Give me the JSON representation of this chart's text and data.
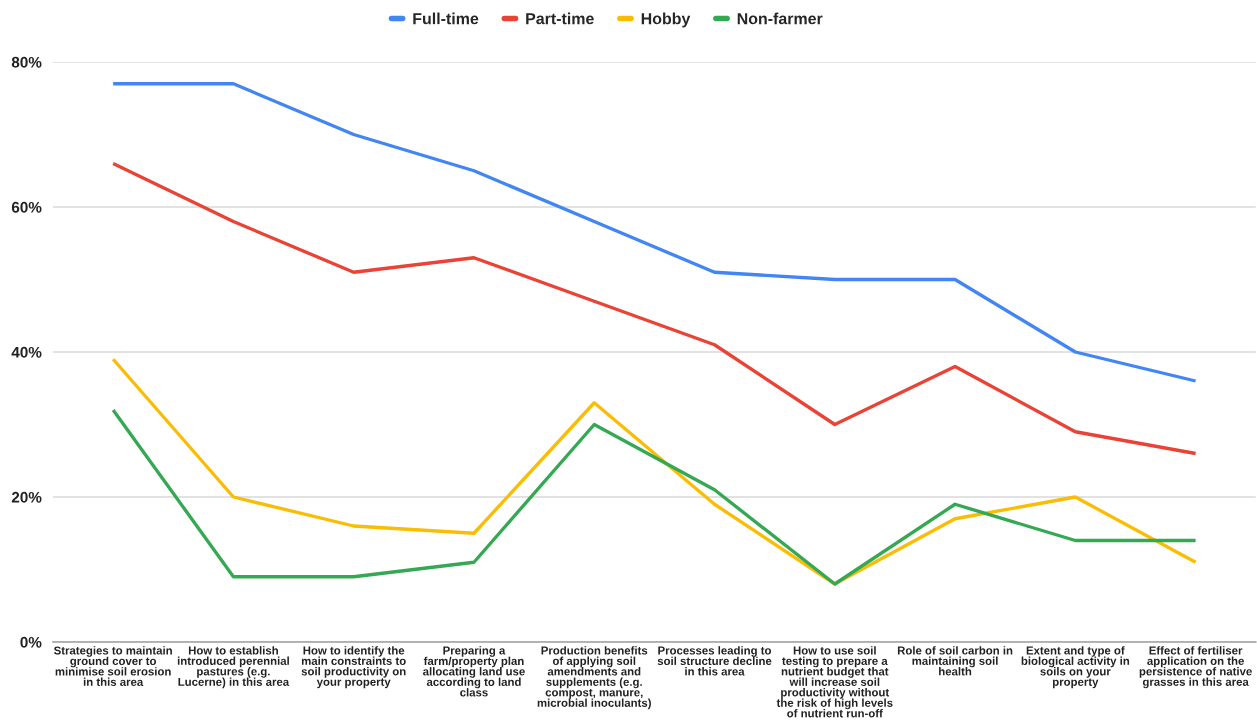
{
  "chart_data": {
    "type": "line",
    "categories": [
      "Strategies to maintain\nground cover to\nminimise soil erosion\nin this area",
      "How to establish\nintroduced perennial\npastures (e.g.\nLucerne) in this area",
      "How to identify the\nmain constraints to\nsoil productivity on\nyour property",
      "Preparing a\nfarm/property plan\nallocating land use\naccording to land\nclass",
      "Production benefits\nof applying soil\namendments and\nsupplements (e.g.\ncompost, manure,\nmicrobial inoculants)",
      "Processes leading to\nsoil structure decline\nin this area",
      "How to use soil\ntesting to prepare a\nnutrient budget that\nwill increase soil\nproductivity without\nthe risk of high levels\nof nutrient run-off",
      "Role of soil carbon in\nmaintaining soil\nhealth",
      "Extent and type of\nbiological activity in\nsoils on your\nproperty",
      "Effect of fertiliser\napplication on the\npersistence of native\ngrasses in this area"
    ],
    "series": [
      {
        "name": "Full-time",
        "color": "#4285f4",
        "values": [
          77,
          77,
          70,
          65,
          58,
          51,
          50,
          50,
          40,
          36
        ]
      },
      {
        "name": "Part-time",
        "color": "#ea4335",
        "values": [
          66,
          58,
          51,
          53,
          47,
          41,
          30,
          38,
          29,
          26
        ]
      },
      {
        "name": "Hobby",
        "color": "#fbbc04",
        "values": [
          39,
          20,
          16,
          15,
          33,
          19,
          8,
          17,
          20,
          11
        ]
      },
      {
        "name": "Non-farmer",
        "color": "#34a853",
        "values": [
          32,
          9,
          9,
          11,
          30,
          21,
          8,
          19,
          14,
          14
        ]
      }
    ],
    "ylim": [
      0,
      80
    ],
    "yticks": [
      {
        "value": 0,
        "label": "0%"
      },
      {
        "value": 20,
        "label": "20%"
      },
      {
        "value": 40,
        "label": "40%"
      },
      {
        "value": 60,
        "label": "60%"
      },
      {
        "value": 80,
        "label": "80%"
      }
    ],
    "grid": "y",
    "legend": "top"
  }
}
